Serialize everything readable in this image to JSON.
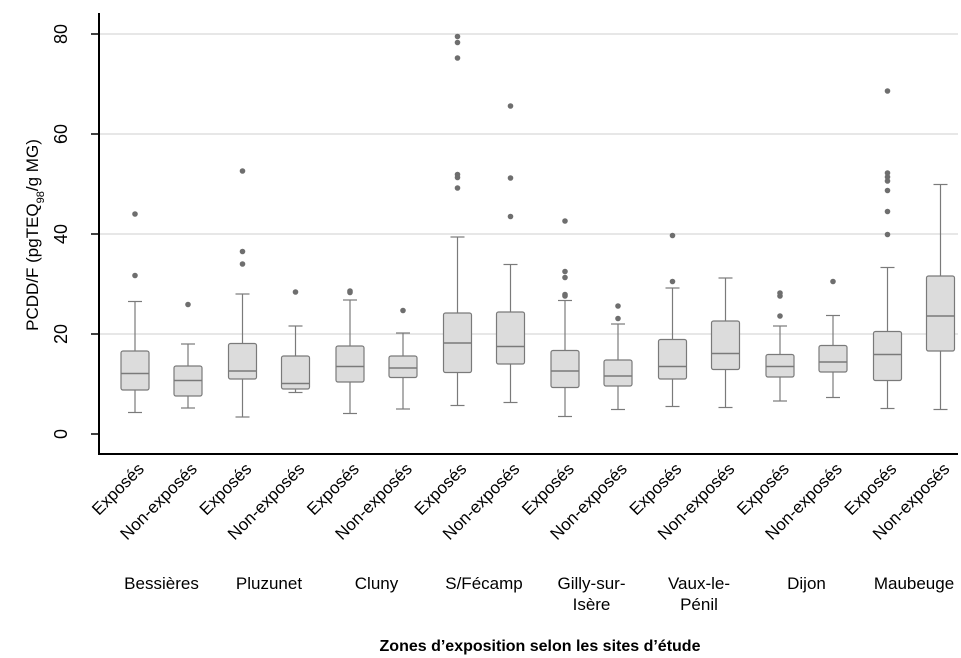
{
  "chart_data": {
    "type": "box",
    "ylabel": {
      "prefix": "PCDD/F (pgTEQ",
      "subscript": "98",
      "suffix": "/g MG)"
    },
    "xlabel": "Zones d’exposition selon les sites d’étude",
    "ylim": [
      -4,
      85
    ],
    "yticks": [
      0,
      20,
      40,
      60,
      80
    ],
    "grid": true,
    "groups": [
      {
        "site": [
          "Bessières"
        ],
        "boxes": [
          {
            "label": "Exposés",
            "min": 4.3,
            "q1": 8.8,
            "median": 12.1,
            "q3": 16.6,
            "max": 26.5,
            "outliers": [
              31.7,
              44.0
            ]
          },
          {
            "label": "Non-exposés",
            "min": 5.2,
            "q1": 7.6,
            "median": 10.7,
            "q3": 13.6,
            "max": 18.0,
            "outliers": [
              25.9
            ]
          }
        ]
      },
      {
        "site": [
          "Pluzunet"
        ],
        "boxes": [
          {
            "label": "Exposés",
            "min": 3.4,
            "q1": 11.0,
            "median": 12.6,
            "q3": 18.1,
            "max": 28.0,
            "outliers": [
              34.0,
              36.5,
              52.6
            ]
          },
          {
            "label": "Non-exposés",
            "min": 8.3,
            "q1": 9.0,
            "median": 10.1,
            "q3": 15.6,
            "max": 21.6,
            "outliers": [
              28.4
            ]
          }
        ]
      },
      {
        "site": [
          "Cluny"
        ],
        "boxes": [
          {
            "label": "Exposés",
            "min": 4.1,
            "q1": 10.4,
            "median": 13.5,
            "q3": 17.6,
            "max": 26.8,
            "outliers": [
              28.3,
              28.6
            ]
          },
          {
            "label": "Non-exposés",
            "min": 5.0,
            "q1": 11.3,
            "median": 13.2,
            "q3": 15.6,
            "max": 20.2,
            "outliers": [
              24.7
            ]
          }
        ]
      },
      {
        "site": [
          "S/Fécamp"
        ],
        "boxes": [
          {
            "label": "Exposés",
            "min": 5.7,
            "q1": 12.3,
            "median": 18.2,
            "q3": 24.2,
            "max": 39.4,
            "outliers": [
              49.2,
              51.3,
              51.9,
              75.2,
              78.3,
              79.5
            ]
          },
          {
            "label": "Non-exposés",
            "min": 6.3,
            "q1": 14.0,
            "median": 17.5,
            "q3": 24.4,
            "max": 33.9,
            "outliers": [
              43.5,
              51.2,
              65.6
            ]
          }
        ]
      },
      {
        "site": [
          "Gilly-sur-",
          "Isère"
        ],
        "boxes": [
          {
            "label": "Exposés",
            "min": 3.5,
            "q1": 9.3,
            "median": 12.6,
            "q3": 16.7,
            "max": 26.7,
            "outliers": [
              27.6,
              27.9,
              31.3,
              32.5,
              42.6
            ]
          },
          {
            "label": "Non-exposés",
            "min": 4.9,
            "q1": 9.6,
            "median": 11.6,
            "q3": 14.8,
            "max": 22.0,
            "outliers": [
              23.1,
              25.6
            ]
          }
        ]
      },
      {
        "site": [
          "Vaux-le-",
          "Pénil"
        ],
        "boxes": [
          {
            "label": "Exposés",
            "min": 5.5,
            "q1": 11.0,
            "median": 13.5,
            "q3": 18.9,
            "max": 29.2,
            "outliers": [
              30.5,
              39.7
            ]
          },
          {
            "label": "Non-exposés",
            "min": 5.3,
            "q1": 12.9,
            "median": 16.1,
            "q3": 22.6,
            "max": 31.2,
            "outliers": []
          }
        ]
      },
      {
        "site": [
          "Dijon"
        ],
        "boxes": [
          {
            "label": "Exposés",
            "min": 6.6,
            "q1": 11.4,
            "median": 13.5,
            "q3": 15.9,
            "max": 21.6,
            "outliers": [
              23.6,
              27.6,
              28.2
            ]
          },
          {
            "label": "Non-exposés",
            "min": 7.3,
            "q1": 12.4,
            "median": 14.4,
            "q3": 17.7,
            "max": 23.7,
            "outliers": [
              30.5
            ]
          }
        ]
      },
      {
        "site": [
          "Maubeuge"
        ],
        "boxes": [
          {
            "label": "Exposés",
            "min": 5.1,
            "q1": 10.7,
            "median": 15.9,
            "q3": 20.5,
            "max": 33.3,
            "outliers": [
              39.9,
              44.5,
              48.7,
              50.6,
              51.4,
              52.2,
              68.6
            ]
          },
          {
            "label": "Non-exposés",
            "min": 4.9,
            "q1": 16.6,
            "median": 23.6,
            "q3": 31.6,
            "max": 49.9,
            "outliers": []
          }
        ]
      }
    ]
  }
}
